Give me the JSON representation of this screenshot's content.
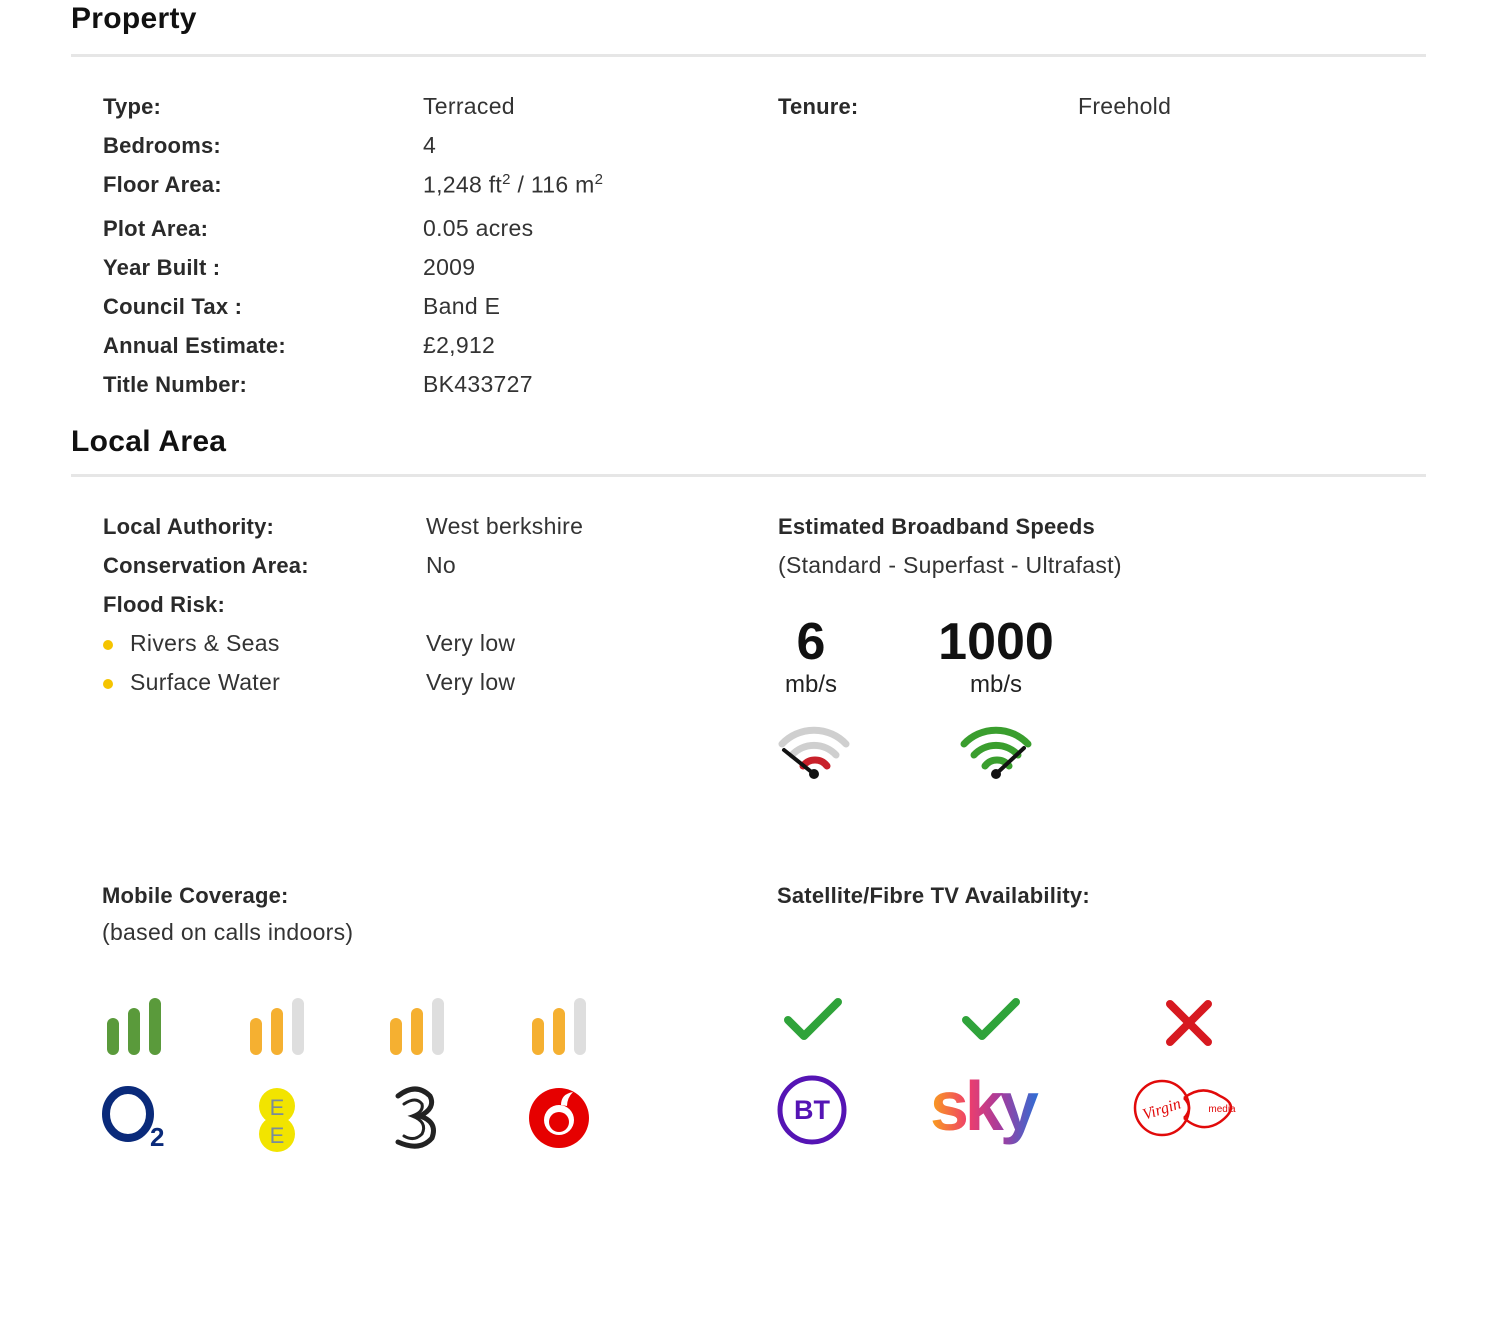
{
  "property": {
    "heading": "Property",
    "rows": [
      {
        "label": "Type:",
        "value": "Terraced"
      },
      {
        "label": "Bedrooms:",
        "value": "4"
      },
      {
        "label": "Floor Area:",
        "value_ft": "1,248 ft",
        "value_sep": " / 116 m",
        "sup": "2"
      },
      {
        "label": "Plot Area:",
        "value": "0.05 acres"
      },
      {
        "label": "Year Built :",
        "value": "2009"
      },
      {
        "label": "Council Tax :",
        "value": "Band E"
      },
      {
        "label": "Annual Estimate:",
        "value": "£2,912"
      },
      {
        "label": "Title Number:",
        "value": "BK433727"
      }
    ],
    "tenure_label": "Tenure:",
    "tenure_value": "Freehold"
  },
  "local_area": {
    "heading": "Local Area",
    "rows": [
      {
        "label": "Local Authority:",
        "value": "West berkshire"
      },
      {
        "label": "Conservation Area:",
        "value": "No"
      },
      {
        "label": "Flood Risk:",
        "value": ""
      }
    ],
    "flood": [
      {
        "label": "Rivers & Seas",
        "value": "Very low"
      },
      {
        "label": "Surface Water",
        "value": "Very low"
      }
    ],
    "broadband": {
      "title": "Estimated Broadband Speeds",
      "subtitle": "(Standard - Superfast - Ultrafast)",
      "speeds": [
        {
          "value": "6",
          "unit": "mb/s",
          "level": "standard",
          "color": "#c8202a"
        },
        {
          "value": "1000",
          "unit": "mb/s",
          "level": "ultrafast",
          "color": "#3a9e2e"
        }
      ]
    },
    "mobile": {
      "title": "Mobile Coverage:",
      "subtitle": "(based on calls indoors)",
      "operators": [
        {
          "name": "O2",
          "bars_filled": 3,
          "bar_color": "#5a9a3b",
          "logo_text": "O",
          "logo_sub": "2"
        },
        {
          "name": "EE",
          "bars_filled": 2,
          "bar_color": "#f5b031",
          "logo_text": "EE"
        },
        {
          "name": "Three",
          "bars_filled": 2,
          "bar_color": "#f5b031",
          "logo_text": "3"
        },
        {
          "name": "Vodafone",
          "bars_filled": 2,
          "bar_color": "#f5b031"
        }
      ]
    },
    "tv": {
      "title": "Satellite/Fibre TV Availability:",
      "providers": [
        {
          "name": "BT",
          "available": true,
          "logo_text": "BT",
          "color": "#5514b4"
        },
        {
          "name": "Sky",
          "available": true,
          "logo_text": "sky"
        },
        {
          "name": "Virgin Media",
          "available": false,
          "logo_text": "Virgin",
          "logo_text2": "media",
          "color": "#e10a0a"
        }
      ]
    }
  }
}
